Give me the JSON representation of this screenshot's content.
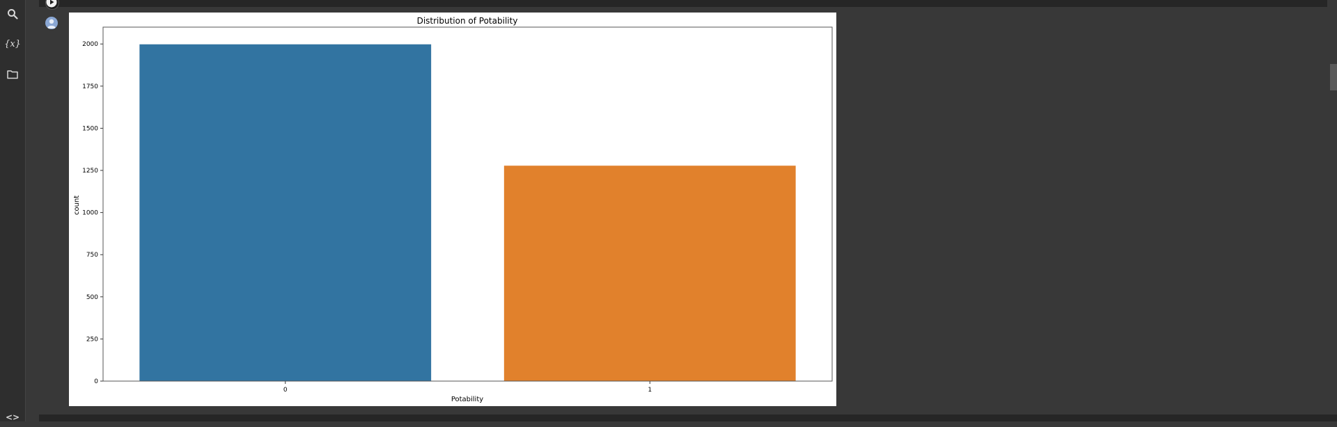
{
  "sidebar": {
    "items": [
      {
        "icon": "search-icon"
      },
      {
        "icon": "variables-icon",
        "label": "{x}"
      },
      {
        "icon": "folder-icon"
      },
      {
        "icon": "code-icon",
        "label": "<>"
      }
    ]
  },
  "cell": {
    "run_icon": "play-icon",
    "avatar_icon": "user-avatar-icon"
  },
  "colors": {
    "background": "#383838",
    "sidebar": "#2e2e2e",
    "series_0": "#3274a1",
    "series_1": "#e1812c"
  },
  "chart_data": {
    "type": "bar",
    "title": "Distribution of Potability",
    "xlabel": "Potability",
    "ylabel": "count",
    "categories": [
      "0",
      "1"
    ],
    "values": [
      1998,
      1278
    ],
    "colors": [
      "#3274a1",
      "#e1812c"
    ],
    "ylim": [
      0,
      2100
    ],
    "yticks": [
      0,
      250,
      500,
      750,
      1000,
      1250,
      1500,
      1750,
      2000
    ],
    "grid": false,
    "legend": "none"
  }
}
